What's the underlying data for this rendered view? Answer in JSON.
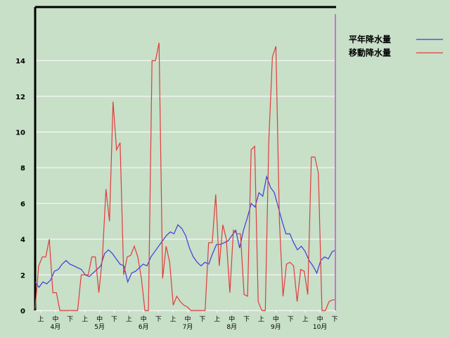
{
  "chart_data": {
    "type": "line",
    "title": "",
    "xlabel": "",
    "ylabel": "",
    "ylim": [
      0,
      17
    ],
    "yticks": [
      0,
      2,
      4,
      6,
      8,
      10,
      12,
      14
    ],
    "grid": true,
    "legend_position": "top-right",
    "colors": {
      "background": "#c8dfc8",
      "grid": "#ffffff",
      "axis": "#000000",
      "marker": "#d070d0"
    },
    "x_axis": {
      "decade_labels": [
        "上",
        "中",
        "下",
        "上",
        "中",
        "下",
        "上",
        "中",
        "下",
        "上",
        "中",
        "下",
        "上",
        "中",
        "下",
        "上",
        "中",
        "下",
        "上",
        "中",
        "下"
      ],
      "month_labels": [
        "4月",
        "5月",
        "6月",
        "7月",
        "8月",
        "9月",
        "10月"
      ]
    },
    "series": [
      {
        "name": "平年降水量",
        "color": "#3c3cdc",
        "values": [
          1.6,
          1.3,
          1.6,
          1.5,
          1.7,
          2.2,
          2.3,
          2.6,
          2.8,
          2.6,
          2.5,
          2.4,
          2.3,
          2.0,
          1.9,
          2.1,
          2.3,
          2.5,
          3.2,
          3.4,
          3.2,
          2.9,
          2.6,
          2.5,
          1.6,
          2.1,
          2.2,
          2.4,
          2.6,
          2.5,
          3.0,
          3.3,
          3.6,
          3.9,
          4.2,
          4.4,
          4.3,
          4.8,
          4.6,
          4.2,
          3.5,
          3.0,
          2.7,
          2.5,
          2.7,
          2.6,
          3.2,
          3.7,
          3.7,
          3.8,
          3.9,
          4.2,
          4.5,
          3.5,
          4.5,
          5.2,
          6.0,
          5.8,
          6.6,
          6.4,
          7.5,
          6.9,
          6.6,
          5.8,
          5.0,
          4.3,
          4.3,
          3.8,
          3.4,
          3.6,
          3.3,
          2.8,
          2.5,
          2.1,
          2.8,
          3.0,
          2.9,
          3.3,
          3.4
        ]
      },
      {
        "name": "移動降水量",
        "color": "#e03c3c",
        "values": [
          0.1,
          2.5,
          3.0,
          3.0,
          4.0,
          1.0,
          1.0,
          0,
          0,
          0,
          0,
          0,
          0,
          2.0,
          2.0,
          2.0,
          3.0,
          3.0,
          1.0,
          3.0,
          6.8,
          5.0,
          11.7,
          9.0,
          9.4,
          2.0,
          3.0,
          3.1,
          3.6,
          3.0,
          1.8,
          0,
          0,
          14.0,
          14.0,
          15.0,
          1.8,
          3.6,
          2.7,
          0.3,
          0.8,
          0.5,
          0.3,
          0.2,
          0,
          0,
          0,
          0,
          0,
          3.8,
          3.8,
          6.5,
          2.5,
          4.8,
          4.0,
          1.0,
          4.5,
          4.3,
          4.3,
          0.9,
          0.8,
          9.0,
          9.2,
          0.5,
          0,
          0,
          9.5,
          14.2,
          14.8,
          5.0,
          0.8,
          2.6,
          2.7,
          2.5,
          0.5,
          2.3,
          2.2,
          0.9,
          8.6,
          8.6,
          7.7,
          0,
          0,
          0.5,
          0.6,
          0.6
        ]
      }
    ]
  }
}
